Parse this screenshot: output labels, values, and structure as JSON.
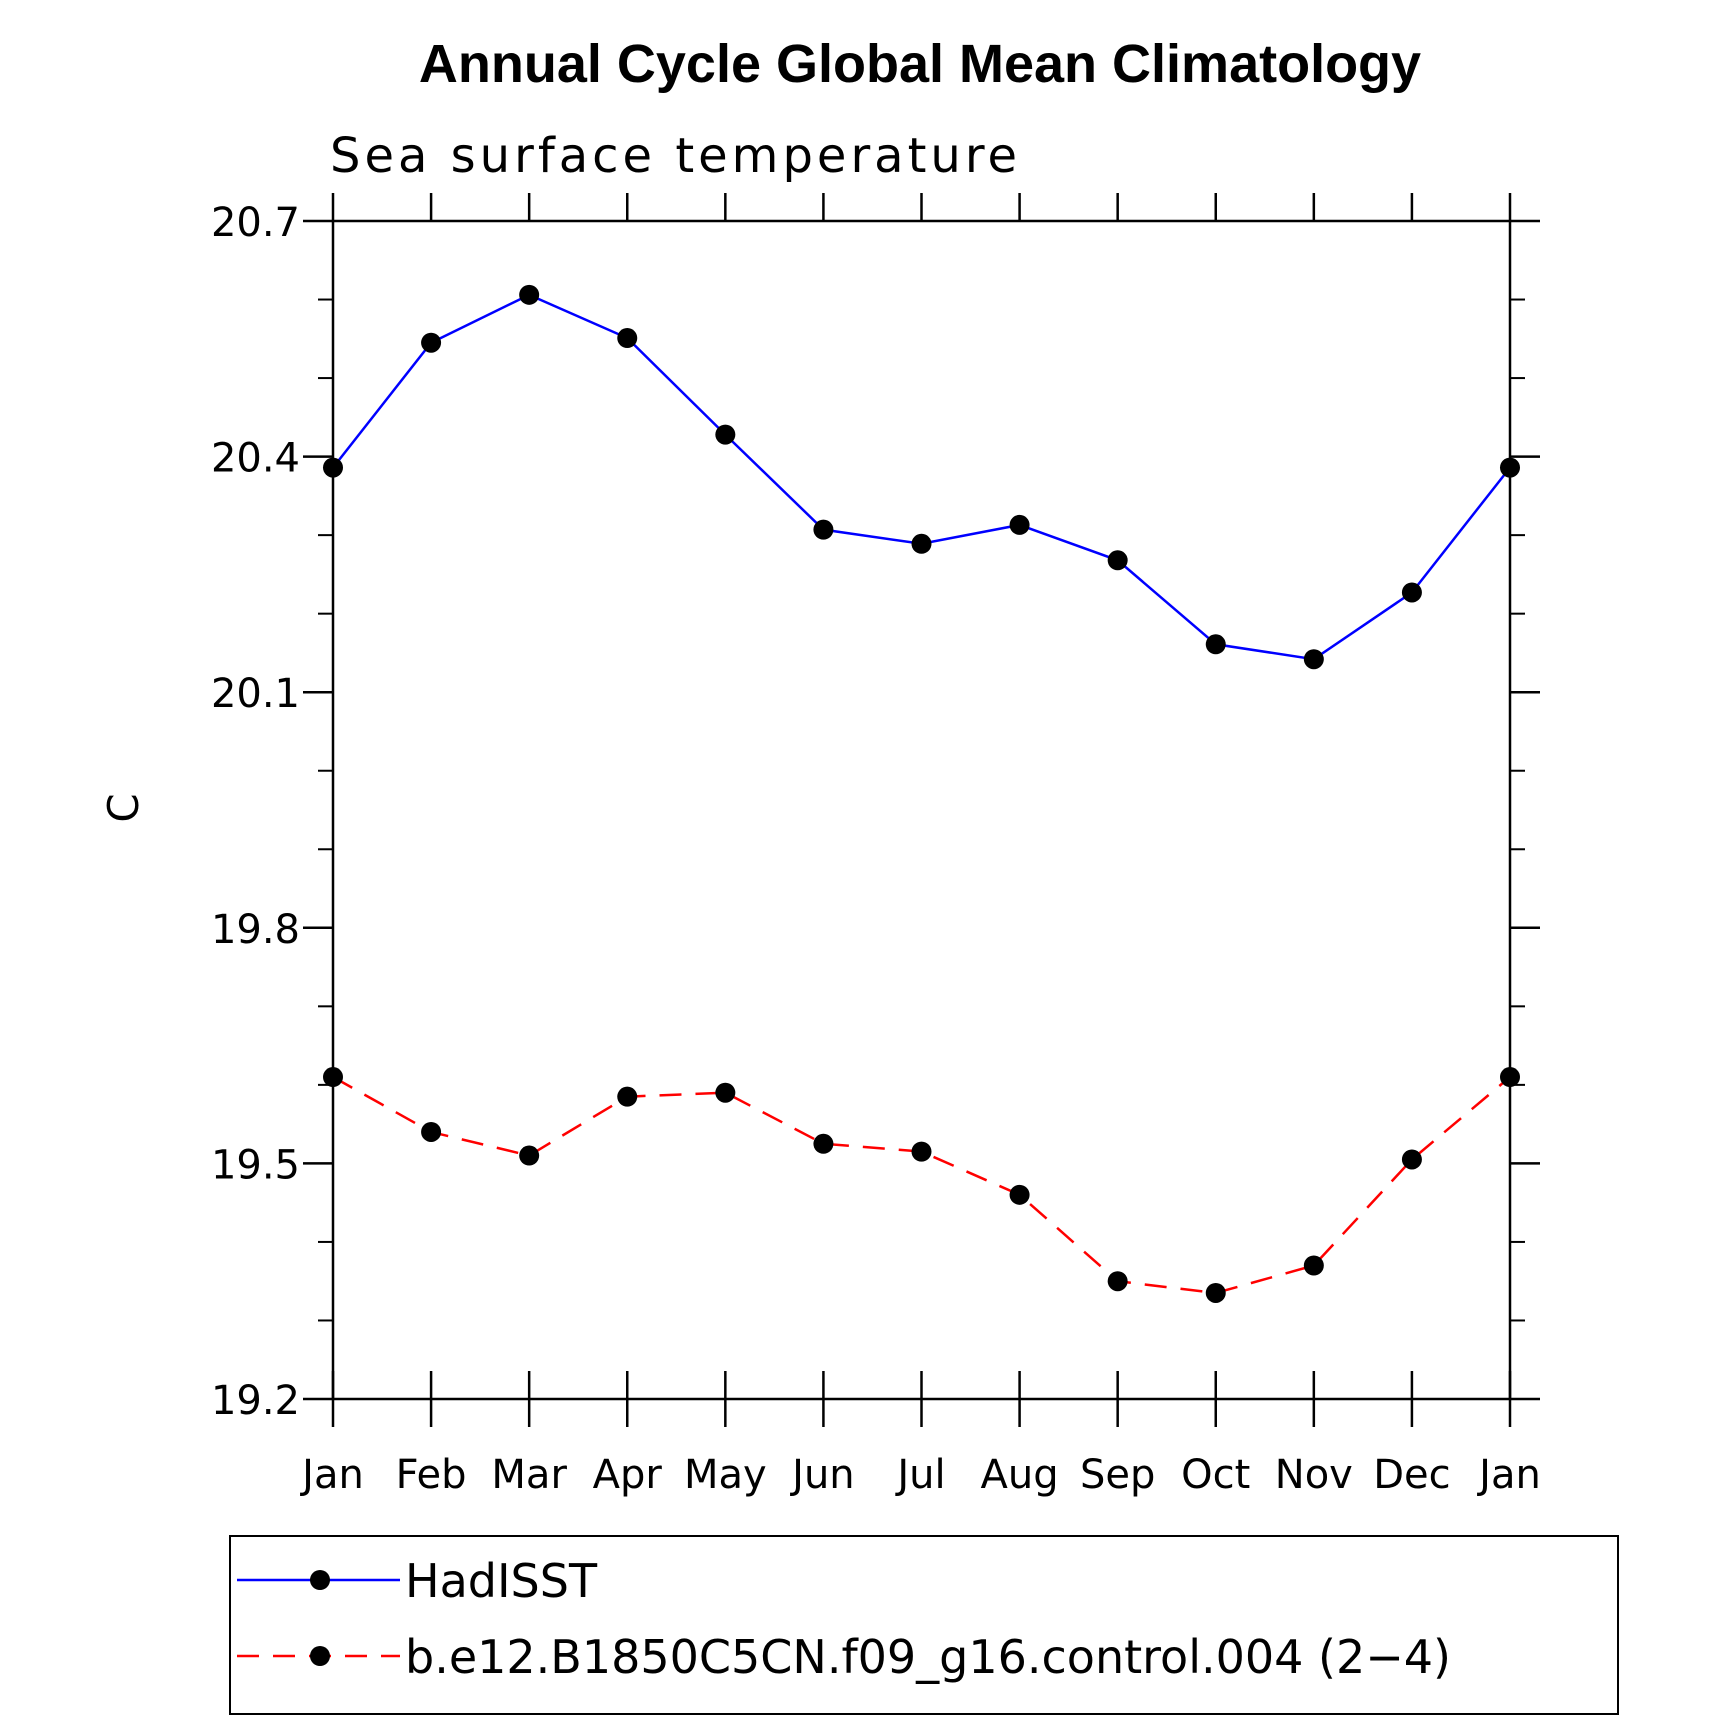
{
  "chart_data": {
    "type": "line",
    "title": "Annual Cycle Global Mean Climatology",
    "subtitle": "Sea surface temperature",
    "xlabel": "",
    "ylabel": "C",
    "categories": [
      "Jan",
      "Feb",
      "Mar",
      "Apr",
      "May",
      "Jun",
      "Jul",
      "Aug",
      "Sep",
      "Oct",
      "Nov",
      "Dec",
      "Jan"
    ],
    "ylim": [
      19.2,
      20.7
    ],
    "yticks": [
      19.2,
      19.5,
      19.8,
      20.1,
      20.4,
      20.7
    ],
    "ytick_labels": [
      "19.2",
      "19.5",
      "19.8",
      "20.1",
      "20.4",
      "20.7"
    ],
    "grid": false,
    "legend_position": "bottom",
    "series": [
      {
        "name": "HadISST",
        "color": "#0000ff",
        "dash": "solid",
        "marker": "filled-circle",
        "values": [
          20.386,
          20.545,
          20.606,
          20.551,
          20.428,
          20.307,
          20.289,
          20.313,
          20.268,
          20.161,
          20.142,
          20.227,
          20.386
        ]
      },
      {
        "name": "b.e12.B1850C5CN.f09_g16.control.004 (2−4)",
        "color": "#ff0000",
        "dash": "dashed",
        "marker": "filled-circle",
        "values": [
          19.61,
          19.54,
          19.51,
          19.585,
          19.59,
          19.525,
          19.515,
          19.46,
          19.35,
          19.335,
          19.37,
          19.505,
          19.61
        ]
      }
    ]
  }
}
